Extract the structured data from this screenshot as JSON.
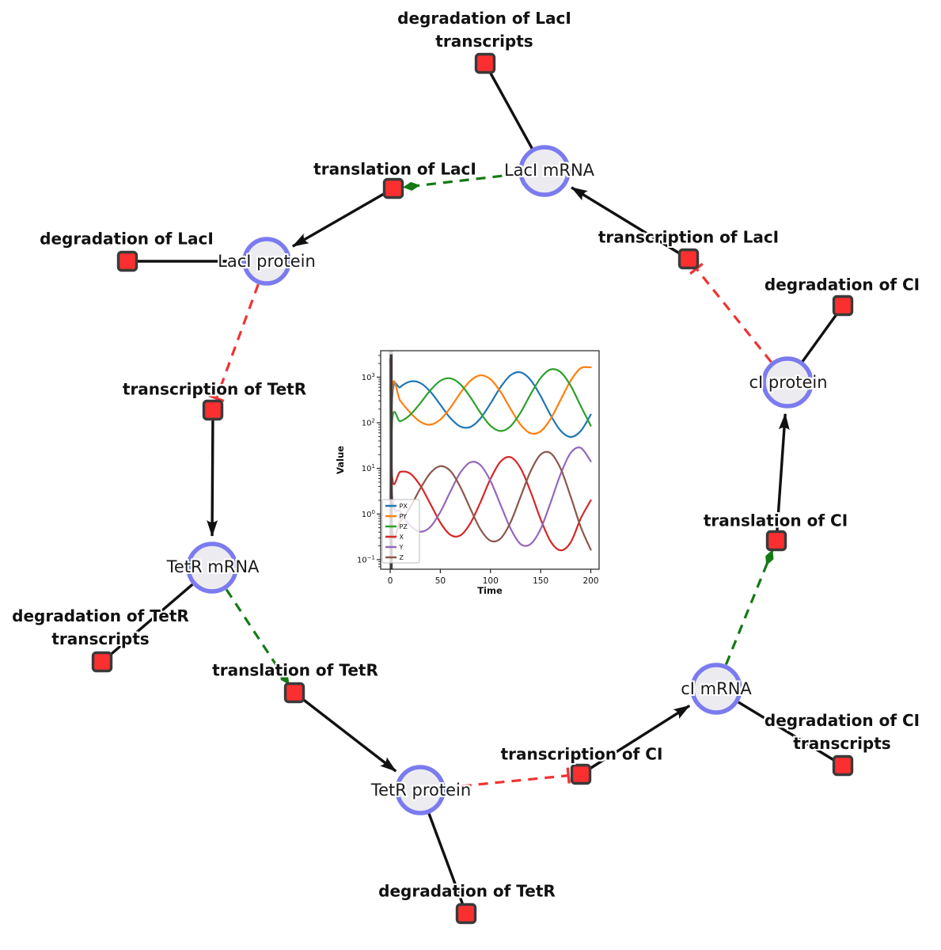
{
  "diagram": {
    "species": [
      {
        "id": "laci-mrna",
        "label": "LacI mRNA"
      },
      {
        "id": "laci-protein",
        "label": "LacI protein"
      },
      {
        "id": "ci-protein",
        "label": "cI protein"
      },
      {
        "id": "tetr-mrna",
        "label": "TetR mRNA"
      },
      {
        "id": "tetr-protein",
        "label": "TetR protein"
      },
      {
        "id": "ci-mrna",
        "label": "cI mRNA"
      }
    ],
    "reactions": [
      {
        "id": "degradation-laci-transcripts",
        "label": "degradation of LacI transcripts"
      },
      {
        "id": "translation-laci",
        "label": "translation of LacI"
      },
      {
        "id": "degradation-laci",
        "label": "degradation of LacI"
      },
      {
        "id": "transcription-laci",
        "label": "transcription of LacI"
      },
      {
        "id": "degradation-ci",
        "label": "degradation of CI"
      },
      {
        "id": "transcription-tetr",
        "label": "transcription of TetR"
      },
      {
        "id": "degradation-tetr-transcripts",
        "label": "degradation of TetR transcripts"
      },
      {
        "id": "translation-tetr",
        "label": "translation of TetR"
      },
      {
        "id": "degradation-tetr",
        "label": "degradation of TetR"
      },
      {
        "id": "transcription-ci",
        "label": "transcription of CI"
      },
      {
        "id": "degradation-ci-transcripts",
        "label": "degradation of CI transcripts"
      },
      {
        "id": "translation-ci",
        "label": "translation of CI"
      }
    ],
    "colors": {
      "species_fill": "#ececf0",
      "species_border": "#7b7bf0",
      "reaction_fill": "#fb2f2f",
      "reaction_border": "#3a3a3a",
      "edge_black": "#111111",
      "edge_activation_green": "#147a14",
      "edge_inhibition_red": "#f03333"
    }
  },
  "chart_data": {
    "type": "line",
    "xlabel": "Time",
    "ylabel": "Value",
    "x_ticks": [
      0,
      50,
      100,
      150,
      200
    ],
    "y_scale": "log",
    "y_tick_exponents": [
      -1,
      0,
      1,
      2,
      3
    ],
    "xlim": [
      -9.5,
      208.3
    ],
    "ylim_log10": [
      -1.21,
      3.58
    ],
    "legend_position": "lower left",
    "grid": false,
    "startup_spike_x": 1,
    "startup_band_x": 0.8,
    "band_color": "#9e9494",
    "series": [
      {
        "name": "PX",
        "color": "#1f77b4",
        "points": [
          [
            0,
            0.2
          ],
          [
            2,
            360
          ],
          [
            10,
            604
          ],
          [
            20,
            803
          ],
          [
            30,
            746
          ],
          [
            40,
            484
          ],
          [
            50,
            249
          ],
          [
            60,
            127
          ],
          [
            70,
            83
          ],
          [
            80,
            81
          ],
          [
            90,
            125
          ],
          [
            100,
            265
          ],
          [
            110,
            602
          ],
          [
            120,
            1102
          ],
          [
            130,
            1276
          ],
          [
            140,
            869
          ],
          [
            150,
            385
          ],
          [
            160,
            146
          ],
          [
            170,
            67
          ],
          [
            180,
            49
          ],
          [
            190,
            66
          ],
          [
            200,
            151
          ]
        ]
      },
      {
        "name": "PY",
        "color": "#ff7f0e",
        "points": [
          [
            0,
            0.2
          ],
          [
            2,
            515
          ],
          [
            10,
            304
          ],
          [
            20,
            166
          ],
          [
            30,
            105
          ],
          [
            40,
            91
          ],
          [
            50,
            118
          ],
          [
            60,
            214
          ],
          [
            70,
            450
          ],
          [
            80,
            837
          ],
          [
            90,
            1099
          ],
          [
            100,
            900
          ],
          [
            110,
            479
          ],
          [
            120,
            202
          ],
          [
            130,
            91
          ],
          [
            140,
            59
          ],
          [
            150,
            65
          ],
          [
            160,
            122
          ],
          [
            170,
            320
          ],
          [
            180,
            841
          ],
          [
            190,
            1571
          ],
          [
            200,
            1641
          ]
        ]
      },
      {
        "name": "PZ",
        "color": "#2ca02c",
        "points": [
          [
            0,
            0.2
          ],
          [
            2,
            111
          ],
          [
            10,
            108
          ],
          [
            20,
            150
          ],
          [
            30,
            269
          ],
          [
            40,
            514
          ],
          [
            50,
            832
          ],
          [
            60,
            944
          ],
          [
            70,
            698
          ],
          [
            80,
            364
          ],
          [
            90,
            165
          ],
          [
            100,
            86
          ],
          [
            110,
            66
          ],
          [
            120,
            84
          ],
          [
            130,
            168
          ],
          [
            140,
            420
          ],
          [
            150,
            957
          ],
          [
            160,
            1476
          ],
          [
            170,
            1285
          ],
          [
            180,
            647
          ],
          [
            190,
            233
          ],
          [
            200,
            86
          ]
        ]
      },
      {
        "name": "X",
        "color": "#d62728",
        "points": [
          [
            0,
            2500
          ],
          [
            2,
            6.5
          ],
          [
            10,
            8.4
          ],
          [
            20,
            7.7
          ],
          [
            30,
            4.2
          ],
          [
            40,
            1.68
          ],
          [
            50,
            0.65
          ],
          [
            60,
            0.35
          ],
          [
            70,
            0.34
          ],
          [
            80,
            0.63
          ],
          [
            90,
            1.82
          ],
          [
            100,
            5.9
          ],
          [
            110,
            14.1
          ],
          [
            120,
            17.6
          ],
          [
            130,
            10.1
          ],
          [
            140,
            3.1
          ],
          [
            150,
            0.77
          ],
          [
            160,
            0.25
          ],
          [
            170,
            0.16
          ],
          [
            180,
            0.24
          ],
          [
            190,
            0.8
          ],
          [
            200,
            2.0
          ]
        ]
      },
      {
        "name": "Y",
        "color": "#9467bd",
        "points": [
          [
            0,
            2500
          ],
          [
            2,
            2.6
          ],
          [
            10,
            1.13
          ],
          [
            20,
            0.56
          ],
          [
            30,
            0.41
          ],
          [
            40,
            0.52
          ],
          [
            50,
            1.11
          ],
          [
            60,
            3.1
          ],
          [
            70,
            8.1
          ],
          [
            80,
            13.6
          ],
          [
            90,
            11.8
          ],
          [
            100,
            5.3
          ],
          [
            110,
            1.6
          ],
          [
            120,
            0.48
          ],
          [
            130,
            0.22
          ],
          [
            140,
            0.22
          ],
          [
            150,
            0.47
          ],
          [
            160,
            1.8
          ],
          [
            170,
            7.6
          ],
          [
            180,
            21.9
          ],
          [
            190,
            28.2
          ],
          [
            200,
            14.3
          ]
        ]
      },
      {
        "name": "Z",
        "color": "#8c564b",
        "points": [
          [
            0,
            2500
          ],
          [
            2,
            0.51
          ],
          [
            10,
            0.69
          ],
          [
            20,
            1.42
          ],
          [
            30,
            3.6
          ],
          [
            40,
            7.9
          ],
          [
            50,
            11.2
          ],
          [
            60,
            8.8
          ],
          [
            70,
            3.9
          ],
          [
            80,
            1.3
          ],
          [
            90,
            0.46
          ],
          [
            100,
            0.26
          ],
          [
            110,
            0.29
          ],
          [
            120,
            0.66
          ],
          [
            130,
            2.4
          ],
          [
            140,
            8.6
          ],
          [
            150,
            20.1
          ],
          [
            160,
            21.5
          ],
          [
            170,
            9.8
          ],
          [
            180,
            2.4
          ],
          [
            190,
            0.52
          ],
          [
            200,
            0.165
          ]
        ]
      }
    ]
  }
}
